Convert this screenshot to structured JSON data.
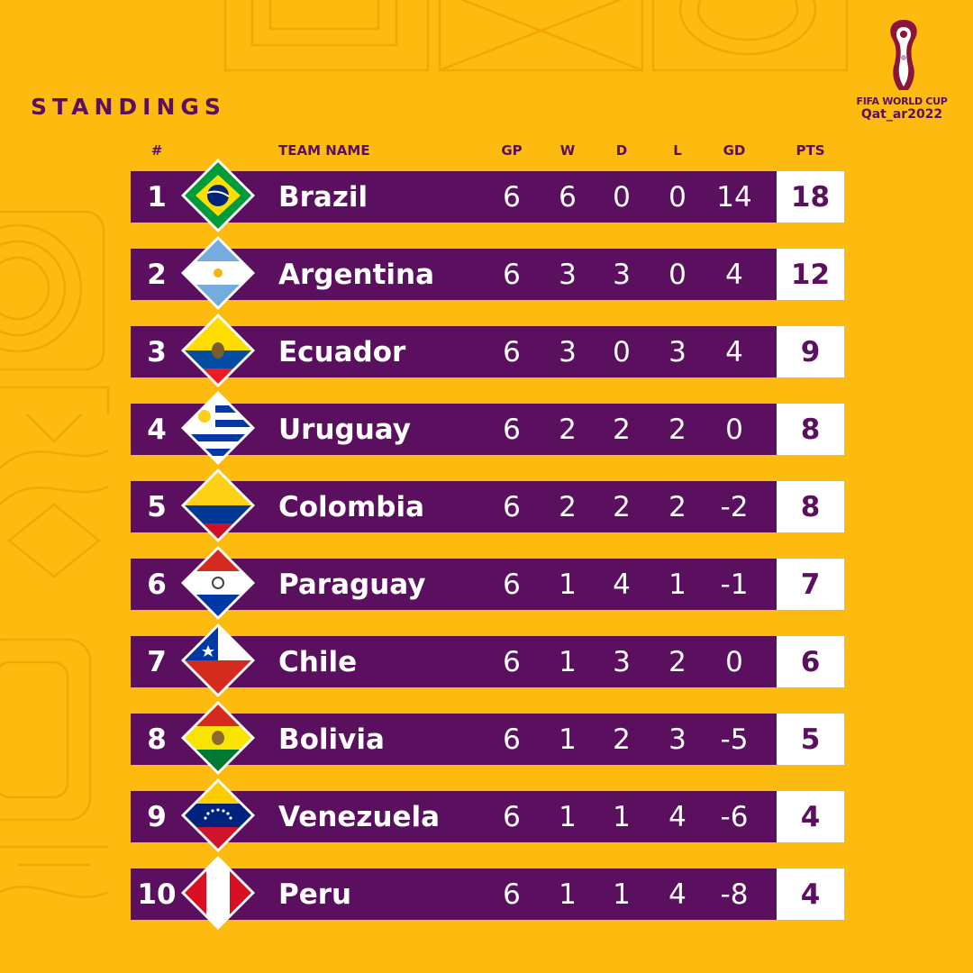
{
  "header": {
    "title": "STANDINGS",
    "logo_line1": "FIFA WORLD CUP",
    "logo_line2": "Qat_ar2022"
  },
  "columns": {
    "rank": "#",
    "team": "TEAM NAME",
    "gp": "GP",
    "w": "W",
    "d": "D",
    "l": "L",
    "gd": "GD",
    "pts": "PTS"
  },
  "colors": {
    "background": "#FDBA0F",
    "row_bar": "#5A0F5F",
    "points_box": "#FFFFFF",
    "text_dark": "#5A0F5F"
  },
  "rows": [
    {
      "rank": "1",
      "team": "Brazil",
      "flag": "brazil-flag-icon",
      "gp": "6",
      "w": "6",
      "d": "0",
      "l": "0",
      "gd": "14",
      "pts": "18"
    },
    {
      "rank": "2",
      "team": "Argentina",
      "flag": "argentina-flag-icon",
      "gp": "6",
      "w": "3",
      "d": "3",
      "l": "0",
      "gd": "4",
      "pts": "12"
    },
    {
      "rank": "3",
      "team": "Ecuador",
      "flag": "ecuador-flag-icon",
      "gp": "6",
      "w": "3",
      "d": "0",
      "l": "3",
      "gd": "4",
      "pts": "9"
    },
    {
      "rank": "4",
      "team": "Uruguay",
      "flag": "uruguay-flag-icon",
      "gp": "6",
      "w": "2",
      "d": "2",
      "l": "2",
      "gd": "0",
      "pts": "8"
    },
    {
      "rank": "5",
      "team": "Colombia",
      "flag": "colombia-flag-icon",
      "gp": "6",
      "w": "2",
      "d": "2",
      "l": "2",
      "gd": "-2",
      "pts": "8"
    },
    {
      "rank": "6",
      "team": "Paraguay",
      "flag": "paraguay-flag-icon",
      "gp": "6",
      "w": "1",
      "d": "4",
      "l": "1",
      "gd": "-1",
      "pts": "7"
    },
    {
      "rank": "7",
      "team": "Chile",
      "flag": "chile-flag-icon",
      "gp": "6",
      "w": "1",
      "d": "3",
      "l": "2",
      "gd": "0",
      "pts": "6"
    },
    {
      "rank": "8",
      "team": "Bolivia",
      "flag": "bolivia-flag-icon",
      "gp": "6",
      "w": "1",
      "d": "2",
      "l": "3",
      "gd": "-5",
      "pts": "5"
    },
    {
      "rank": "9",
      "team": "Venezuela",
      "flag": "venezuela-flag-icon",
      "gp": "6",
      "w": "1",
      "d": "1",
      "l": "4",
      "gd": "-6",
      "pts": "4"
    },
    {
      "rank": "10",
      "team": "Peru",
      "flag": "peru-flag-icon",
      "gp": "6",
      "w": "1",
      "d": "1",
      "l": "4",
      "gd": "-8",
      "pts": "4"
    }
  ]
}
